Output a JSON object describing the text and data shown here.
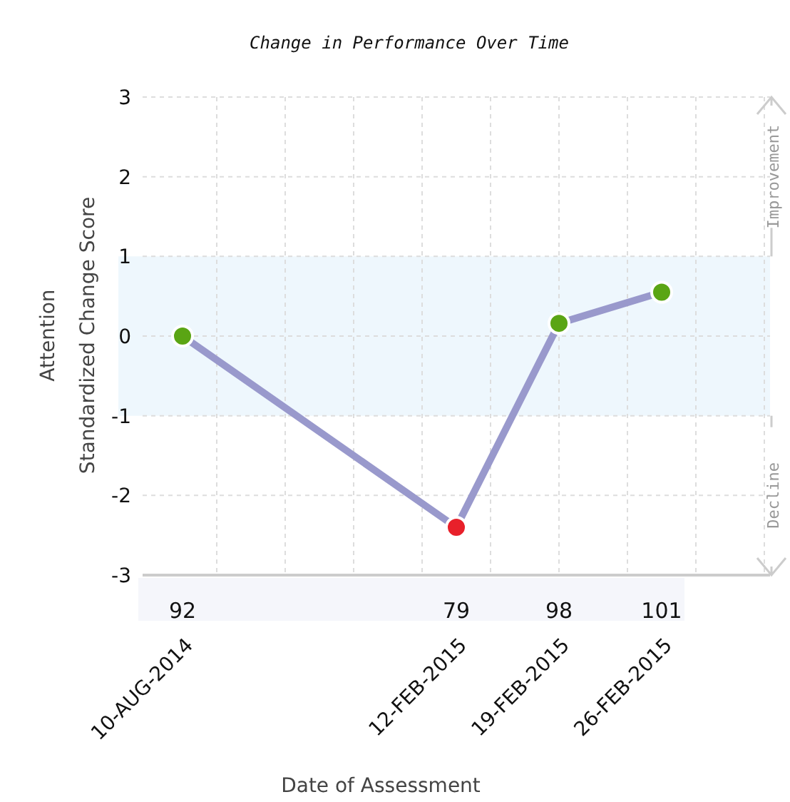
{
  "chart_data": {
    "type": "line",
    "title": "Change in Performance Over Time",
    "xlabel": "Date of Assessment",
    "ylabel": "Attention\nStandardized Change Score",
    "categories": [
      "10-AUG-2014",
      null,
      null,
      null,
      null,
      null,
      null,
      null,
      "12-FEB-2015",
      null,
      null,
      "19-FEB-2015",
      null,
      null,
      "26-FEB-2015"
    ],
    "series": [
      {
        "color": "#9999cc",
        "values": [
          0,
          null,
          null,
          null,
          null,
          null,
          null,
          null,
          -2.4,
          null,
          null,
          0.16,
          null,
          null,
          0.55
        ],
        "colors": [
          "#5aa514",
          null,
          null,
          null,
          null,
          null,
          null,
          null,
          "#e8202a",
          null,
          null,
          "#5aa514",
          null,
          null,
          "#5aa514"
        ]
      }
    ],
    "ylim": [
      -3,
      3
    ],
    "yticks": [
      -3,
      -2,
      -1,
      0,
      1,
      2,
      3
    ],
    "grid": true,
    "marker": "circle",
    "line_style": "solid",
    "bands": [
      {
        "axis": "y",
        "from": -1,
        "to": 1,
        "color": "#eef7fd"
      }
    ],
    "annotations": [
      "Improvement",
      "Decline",
      "92",
      "79",
      "98",
      "101"
    ]
  }
}
